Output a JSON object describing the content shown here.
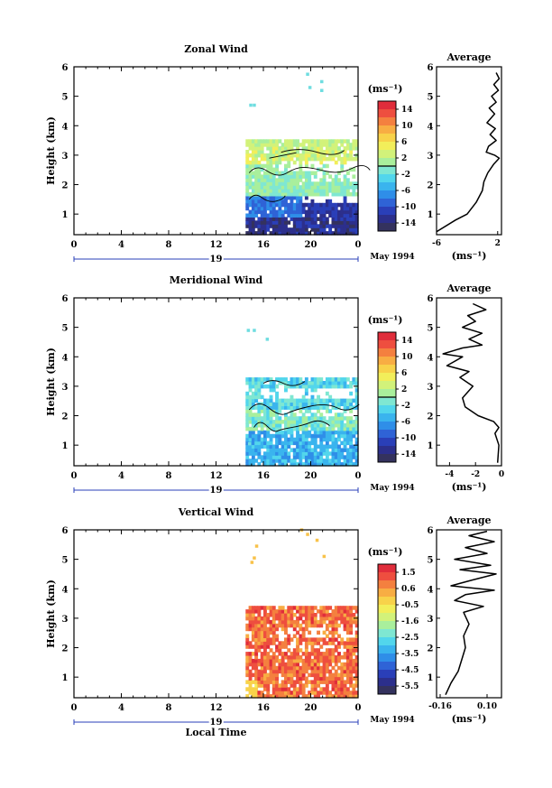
{
  "chart_data": [
    {
      "type": "heatmap",
      "title": "Zonal Wind",
      "ylabel": "Height (km)",
      "xlabel": "",
      "xlim": [
        0,
        24
      ],
      "ylim": [
        0.3,
        6
      ],
      "x_ticks": [
        "0",
        "4",
        "8",
        "12",
        "16",
        "20",
        "0"
      ],
      "y_ticks": [
        "1",
        "2",
        "3",
        "4",
        "5",
        "6"
      ],
      "date_labels": {
        "day": "19",
        "month": "May 1994"
      },
      "colorbar": {
        "unit": "(ms⁻¹)",
        "min": -16,
        "max": 16,
        "contour_level": 0,
        "tick_labels": [
          "14",
          "10",
          "6",
          "2",
          "-2",
          "-6",
          "-10",
          "-14"
        ]
      },
      "average_profile": {
        "title": "Average",
        "xlabel": "(ms⁻¹)",
        "xlim": [
          -6,
          2.5
        ],
        "x_ticks": [
          "-6",
          "2"
        ],
        "y_ticks": [
          "1",
          "2",
          "3",
          "4",
          "5",
          "6"
        ],
        "points": [
          [
            -6.0,
            0.4
          ],
          [
            -3.5,
            0.8
          ],
          [
            -2.0,
            1.0
          ],
          [
            -0.8,
            1.4
          ],
          [
            0.0,
            1.8
          ],
          [
            0.2,
            2.1
          ],
          [
            0.7,
            2.4
          ],
          [
            1.5,
            2.7
          ],
          [
            2.2,
            2.9
          ],
          [
            1.6,
            3.0
          ],
          [
            0.5,
            3.1
          ],
          [
            0.8,
            3.3
          ],
          [
            1.8,
            3.5
          ],
          [
            1.0,
            3.7
          ],
          [
            1.7,
            3.9
          ],
          [
            0.6,
            4.1
          ],
          [
            1.6,
            4.4
          ],
          [
            0.9,
            4.6
          ],
          [
            1.8,
            4.8
          ],
          [
            1.2,
            5.0
          ],
          [
            2.1,
            5.2
          ],
          [
            1.5,
            5.4
          ],
          [
            2.2,
            5.6
          ],
          [
            1.8,
            5.8
          ]
        ]
      }
    },
    {
      "type": "heatmap",
      "title": "Meridional Wind",
      "ylabel": "Height (km)",
      "xlabel": "",
      "xlim": [
        0,
        24
      ],
      "ylim": [
        0.3,
        6
      ],
      "x_ticks": [
        "0",
        "4",
        "8",
        "12",
        "16",
        "20",
        "0"
      ],
      "y_ticks": [
        "1",
        "2",
        "3",
        "4",
        "5",
        "6"
      ],
      "date_labels": {
        "day": "19",
        "month": "May 1994"
      },
      "colorbar": {
        "unit": "(ms⁻¹)",
        "min": -16,
        "max": 16,
        "contour_level": 0,
        "tick_labels": [
          "14",
          "10",
          "6",
          "2",
          "-2",
          "-6",
          "-10",
          "-14"
        ]
      },
      "average_profile": {
        "title": "Average",
        "xlabel": "(ms⁻¹)",
        "xlim": [
          -5,
          0
        ],
        "x_ticks": [
          "-4",
          "-2",
          "0"
        ],
        "y_ticks": [
          "1",
          "2",
          "3",
          "4",
          "5",
          "6"
        ],
        "points": [
          [
            -0.3,
            0.4
          ],
          [
            -0.2,
            1.0
          ],
          [
            -0.5,
            1.4
          ],
          [
            -0.2,
            1.6
          ],
          [
            -0.6,
            1.8
          ],
          [
            -1.8,
            2.0
          ],
          [
            -2.8,
            2.3
          ],
          [
            -3.0,
            2.6
          ],
          [
            -2.2,
            3.0
          ],
          [
            -3.2,
            3.3
          ],
          [
            -2.5,
            3.5
          ],
          [
            -4.2,
            3.7
          ],
          [
            -3.0,
            4.0
          ],
          [
            -4.5,
            4.1
          ],
          [
            -3.0,
            4.3
          ],
          [
            -1.5,
            4.4
          ],
          [
            -2.5,
            4.6
          ],
          [
            -1.5,
            4.8
          ],
          [
            -3.0,
            5.0
          ],
          [
            -2.0,
            5.2
          ],
          [
            -2.6,
            5.4
          ],
          [
            -1.2,
            5.6
          ],
          [
            -2.2,
            5.8
          ]
        ]
      }
    },
    {
      "type": "heatmap",
      "title": "Vertical Wind",
      "ylabel": "Height (km)",
      "xlabel": "Local Time",
      "xlim": [
        0,
        24
      ],
      "ylim": [
        0.3,
        6
      ],
      "x_ticks": [
        "0",
        "4",
        "8",
        "12",
        "16",
        "20",
        "0"
      ],
      "y_ticks": [
        "1",
        "2",
        "3",
        "4",
        "5",
        "6"
      ],
      "date_labels": {
        "day": "19",
        "month": "May 1994"
      },
      "colorbar": {
        "unit": "(ms⁻¹)",
        "min": -6,
        "max": 2,
        "tick_labels": [
          "1.5",
          "0.6",
          "-0.5",
          "-1.6",
          "-2.5",
          "-3.5",
          "-4.5",
          "-5.5"
        ]
      },
      "average_profile": {
        "title": "Average",
        "xlabel": "(ms⁻¹)",
        "xlim": [
          -0.18,
          0.18
        ],
        "x_ticks": [
          "-0.16",
          "0.10"
        ],
        "y_ticks": [
          "1",
          "2",
          "3",
          "4",
          "5",
          "6"
        ],
        "points": [
          [
            -0.13,
            0.4
          ],
          [
            -0.1,
            0.8
          ],
          [
            -0.06,
            1.2
          ],
          [
            -0.04,
            1.6
          ],
          [
            -0.02,
            2.0
          ],
          [
            -0.03,
            2.4
          ],
          [
            0.0,
            2.8
          ],
          [
            -0.03,
            3.2
          ],
          [
            0.08,
            3.4
          ],
          [
            -0.08,
            3.6
          ],
          [
            -0.02,
            3.8
          ],
          [
            0.14,
            3.95
          ],
          [
            -0.1,
            4.1
          ],
          [
            0.02,
            4.3
          ],
          [
            0.15,
            4.5
          ],
          [
            -0.05,
            4.65
          ],
          [
            0.12,
            4.8
          ],
          [
            -0.08,
            5.0
          ],
          [
            0.1,
            5.2
          ],
          [
            -0.02,
            5.4
          ],
          [
            0.14,
            5.6
          ],
          [
            0.0,
            5.8
          ],
          [
            0.1,
            5.95
          ]
        ]
      }
    }
  ]
}
